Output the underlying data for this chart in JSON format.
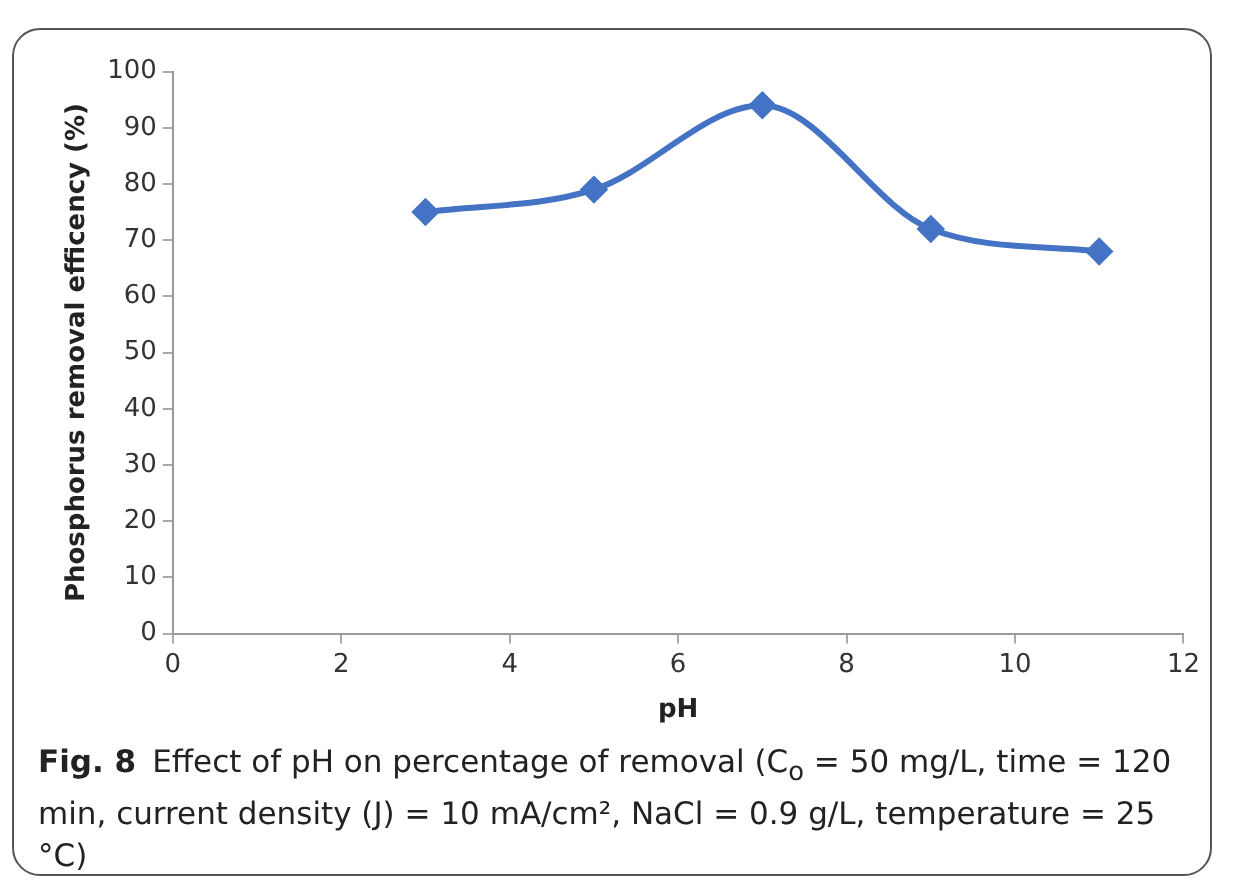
{
  "chart_data": {
    "type": "line",
    "xlabel": "pH",
    "ylabel": "Phosphorus removal efficency (%)",
    "x": [
      3,
      5,
      7,
      9,
      11
    ],
    "series": [
      {
        "color": "#4472c4",
        "values": [
          75,
          79,
          94,
          72,
          68
        ]
      }
    ],
    "xlim": [
      0,
      12
    ],
    "xticks": [
      0,
      2,
      4,
      6,
      8,
      10,
      12
    ],
    "ylim": [
      0,
      100
    ],
    "yticks": [
      0,
      10,
      20,
      30,
      40,
      50,
      60,
      70,
      80,
      90,
      100
    ],
    "grid": false,
    "legend": false,
    "marker": "diamond",
    "line_style": "solid",
    "annotations": [
      "Fig. 8",
      "Effect of pH on percentage of removal (C$_{o}$ = 50 mg/L, time = 120 min, current density (J) = 10 mA/cm², NaCl = 0.9 g/L, temperature = 25 °C)"
    ]
  }
}
